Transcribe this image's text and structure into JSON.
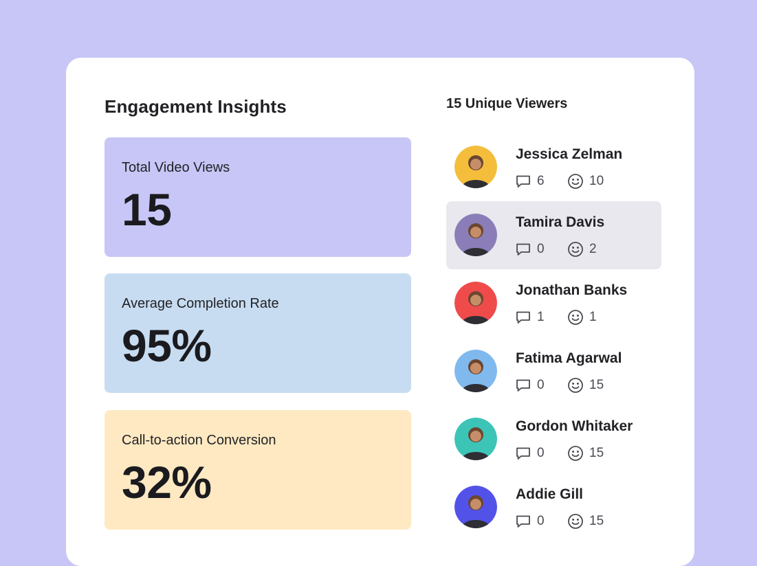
{
  "insights": {
    "title": "Engagement Insights",
    "metrics": [
      {
        "label": "Total Video Views",
        "value": "15",
        "color": "#c7c6f6"
      },
      {
        "label": "Average Completion Rate",
        "value": "95%",
        "color": "#c7dcf0"
      },
      {
        "label": "Call-to-action Conversion",
        "value": "32%",
        "color": "#fee9c2"
      }
    ]
  },
  "viewers": {
    "title": "15 Unique Viewers",
    "items": [
      {
        "name": "Jessica Zelman",
        "comments": "6",
        "reactions": "10",
        "avatar_bg": "#f4bd3c",
        "highlighted": false
      },
      {
        "name": "Tamira Davis",
        "comments": "0",
        "reactions": "2",
        "avatar_bg": "#8a7db8",
        "highlighted": true
      },
      {
        "name": "Jonathan Banks",
        "comments": "1",
        "reactions": "1",
        "avatar_bg": "#ef4b4b",
        "highlighted": false
      },
      {
        "name": "Fatima Agarwal",
        "comments": "0",
        "reactions": "15",
        "avatar_bg": "#7fb9ee",
        "highlighted": false
      },
      {
        "name": "Gordon Whitaker",
        "comments": "0",
        "reactions": "15",
        "avatar_bg": "#3cc4b7",
        "highlighted": false
      },
      {
        "name": "Addie Gill",
        "comments": "0",
        "reactions": "15",
        "avatar_bg": "#5352e8",
        "highlighted": false
      }
    ]
  },
  "icons": {
    "comment": "comment-bubble-icon",
    "reaction": "smiley-face-icon"
  },
  "colors": {
    "background": "#c7c6f6",
    "card": "#ffffff",
    "highlight_row": "#e9e8ee"
  }
}
